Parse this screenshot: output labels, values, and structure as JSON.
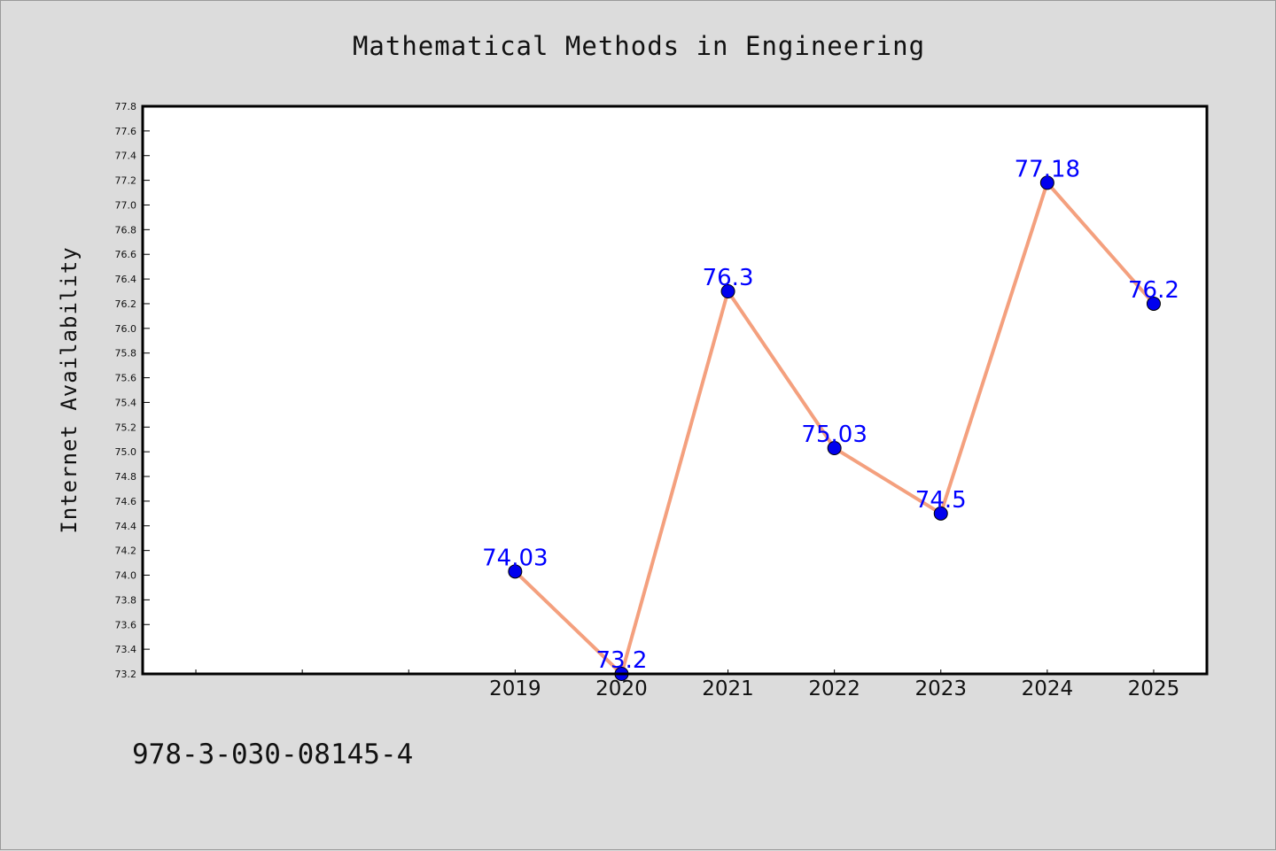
{
  "header": {
    "title": "Mathematical Methods in Engineering"
  },
  "footer": {
    "isbn": "978-3-030-08145-4"
  },
  "colors": {
    "background": "#dcdcdc",
    "plot_background": "#ffffff",
    "line": "#f4a07e",
    "marker": "#0000ee",
    "data_label": "#0000ff"
  },
  "chart_data": {
    "type": "line",
    "title": "Mathematical Methods in Engineering",
    "xlabel": "",
    "ylabel": "Internet Availability",
    "x": [
      "2019",
      "2020",
      "2021",
      "2022",
      "2023",
      "2024",
      "2025"
    ],
    "series": [
      {
        "values": [
          74.03,
          73.2,
          76.3,
          75.03,
          74.5,
          77.18,
          76.2
        ],
        "labels": [
          "74.03",
          "73.2",
          "76.3",
          "75.03",
          "74.5",
          "77.18",
          "76.2"
        ]
      }
    ],
    "ylim": [
      73.2,
      77.8
    ],
    "ytick_step": 0.2,
    "x_slots_before_first": 3,
    "grid": false,
    "legend": "none"
  }
}
